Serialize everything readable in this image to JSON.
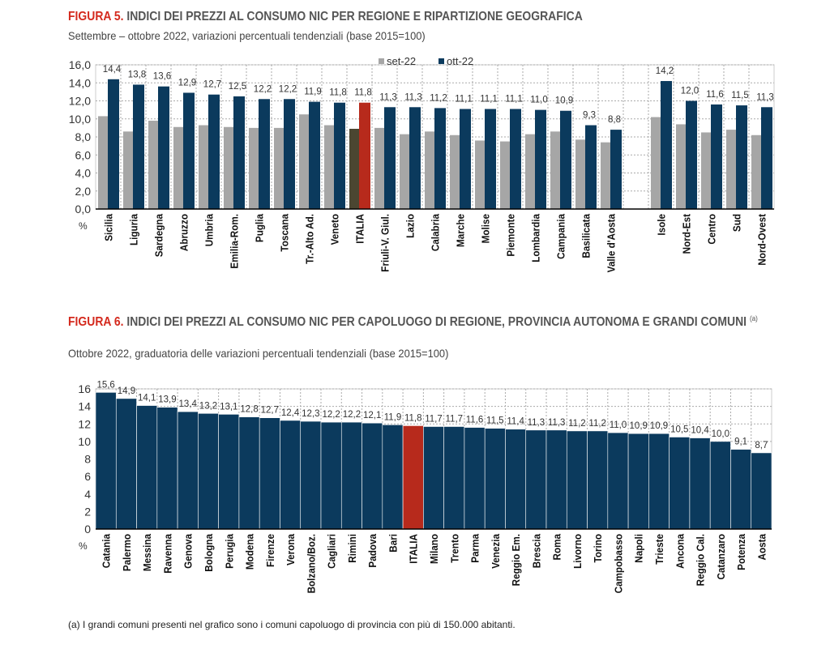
{
  "figure5": {
    "label": "FIGURA 5.",
    "title": "INDICI DEI PREZZI AL CONSUMO NIC PER REGIONE E RIPARTIZIONE GEOGRAFICA",
    "subtitle": "Settembre – ottobre 2022, variazioni percentuali tendenziali (base 2015=100)"
  },
  "figure6": {
    "label": "FIGURA 6.",
    "title": "INDICI DEI PREZZI AL CONSUMO NIC PER CAPOLUOGO DI REGIONE, PROVINCIA AUTONOMA E GRANDI COMUNI",
    "note_ref": "(a)",
    "subtitle": "Ottobre 2022, graduatoria delle variazioni percentuali tendenziali (base 2015=100)"
  },
  "footnote": "(a)  I grandi comuni presenti nel grafico sono i comuni capoluogo di provincia con più di 150.000 abitanti.",
  "colors": {
    "navy": "#0b3a5d",
    "gray": "#a6a6a6",
    "italia": "#b72a1c",
    "italia_set": "#4b4631"
  },
  "chart_data": [
    {
      "type": "bar",
      "ylabel": "%",
      "ylim": [
        0,
        16
      ],
      "yticks": [
        "0,0",
        "2,0",
        "4,0",
        "6,0",
        "8,0",
        "10,0",
        "12,0",
        "14,0",
        "16,0"
      ],
      "grid": true,
      "legend": "top-center",
      "categories": [
        "Sicilia",
        "Liguria",
        "Sardegna",
        "Abruzzo",
        "Umbria",
        "Emilia-Rom.",
        "Puglia",
        "Toscana",
        "Tr.-Alto Ad.",
        "Veneto",
        "ITALIA",
        "Friuli-V. Giul.",
        "Lazio",
        "Calabria",
        "Marche",
        "Molise",
        "Piemonte",
        "Lombardia",
        "Campania",
        "Basilicata",
        "Valle d'Aosta",
        "",
        "Isole",
        "Nord-Est",
        "Centro",
        "Sud",
        "Nord-Ovest"
      ],
      "series": [
        {
          "name": "set-22",
          "values": [
            10.3,
            8.6,
            9.8,
            9.1,
            9.3,
            9.1,
            9.0,
            9.0,
            10.5,
            9.3,
            8.9,
            9.0,
            8.3,
            8.6,
            8.2,
            7.6,
            7.5,
            8.3,
            8.6,
            7.7,
            7.4,
            null,
            10.2,
            9.4,
            8.5,
            8.8,
            8.2
          ]
        },
        {
          "name": "ott-22",
          "values": [
            14.4,
            13.8,
            13.6,
            12.9,
            12.7,
            12.5,
            12.2,
            12.2,
            11.9,
            11.8,
            11.8,
            11.3,
            11.3,
            11.2,
            11.1,
            11.1,
            11.1,
            11.0,
            10.9,
            9.3,
            8.8,
            null,
            14.2,
            12.0,
            11.6,
            11.5,
            11.3
          ],
          "labels": [
            "14,4",
            "13,8",
            "13,6",
            "12,9",
            "12,7",
            "12,5",
            "12,2",
            "12,2",
            "11,9",
            "11,8",
            "11,8",
            "11,3",
            "11,3",
            "11,2",
            "11,1",
            "11,1",
            "11,1",
            "11,0",
            "10,9",
            "9,3",
            "8,8",
            "",
            "14,2",
            "12,0",
            "11,6",
            "11,5",
            "11,3"
          ]
        }
      ]
    },
    {
      "type": "bar",
      "ylabel": "%",
      "ylim": [
        0,
        16
      ],
      "yticks": [
        "0",
        "2",
        "4",
        "6",
        "8",
        "10",
        "12",
        "14",
        "16"
      ],
      "grid": true,
      "categories": [
        "Catania",
        "Palermo",
        "Messina",
        "Ravenna",
        "Genova",
        "Bologna",
        "Perugia",
        "Modena",
        "Firenze",
        "Verona",
        "Bolzano/Boz.",
        "Cagliari",
        "Rimini",
        "Padova",
        "Bari",
        "ITALIA",
        "Milano",
        "Trento",
        "Parma",
        "Venezia",
        "Reggio Em.",
        "Brescia",
        "Roma",
        "Livorno",
        "Torino",
        "Campobasso",
        "Napoli",
        "Trieste",
        "Ancona",
        "Reggio Cal.",
        "Catanzaro",
        "Potenza",
        "Aosta"
      ],
      "values": [
        15.6,
        14.9,
        14.1,
        13.9,
        13.4,
        13.2,
        13.1,
        12.8,
        12.7,
        12.4,
        12.3,
        12.2,
        12.2,
        12.1,
        11.9,
        11.8,
        11.7,
        11.7,
        11.6,
        11.5,
        11.4,
        11.3,
        11.3,
        11.2,
        11.2,
        11.0,
        10.9,
        10.9,
        10.5,
        10.4,
        10.0,
        9.1,
        8.7
      ],
      "labels": [
        "15,6",
        "14,9",
        "14,1",
        "13,9",
        "13,4",
        "13,2",
        "13,1",
        "12,8",
        "12,7",
        "12,4",
        "12,3",
        "12,2",
        "12,2",
        "12,1",
        "11,9",
        "11,8",
        "11,7",
        "11,7",
        "11,6",
        "11,5",
        "11,4",
        "11,3",
        "11,3",
        "11,2",
        "11,2",
        "11,0",
        "10,9",
        "10,9",
        "10,5",
        "10,4",
        "10,0",
        "9,1",
        "8,7"
      ]
    }
  ]
}
